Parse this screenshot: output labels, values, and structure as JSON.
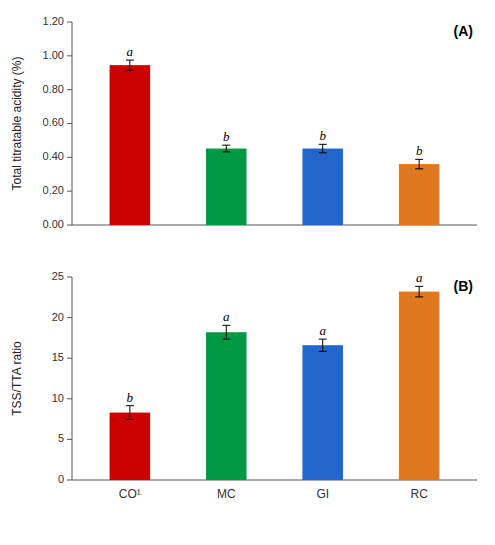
{
  "chart_data": [
    {
      "type": "bar",
      "title": "(A)",
      "categories": [
        null,
        null,
        null,
        null
      ],
      "values": [
        0.945,
        0.452,
        0.452,
        0.36
      ],
      "errors": [
        0.03,
        0.02,
        0.025,
        0.028
      ],
      "annotations": [
        "a",
        "b",
        "b",
        "b"
      ],
      "colors": [
        "#cc0000",
        "#009944",
        "#2266cc",
        "#e07820"
      ],
      "ylabel": "Total titratable acidity (%)",
      "ylim": [
        0.0,
        1.2
      ],
      "yticks": [
        {
          "value": 0.0,
          "label": "0.00"
        },
        {
          "value": 0.2,
          "label": "0.20"
        },
        {
          "value": 0.4,
          "label": "0.40"
        },
        {
          "value": 0.6,
          "label": "0.60"
        },
        {
          "value": 0.8,
          "label": "0.80"
        },
        {
          "value": 1.0,
          "label": "1.00"
        },
        {
          "value": 1.2,
          "label": "1.20"
        }
      ],
      "tick_labels": "y",
      "grid": false
    },
    {
      "type": "bar",
      "title": "(B)",
      "categories": [
        "CO¹",
        "MC",
        "GI",
        "RC"
      ],
      "values": [
        8.3,
        18.2,
        16.6,
        23.2
      ],
      "errors": [
        0.85,
        0.85,
        0.75,
        0.65
      ],
      "annotations": [
        "b",
        "a",
        "a",
        "a"
      ],
      "colors": [
        "#cc0000",
        "#009944",
        "#2266cc",
        "#e07820"
      ],
      "ylabel": "TSS/TTA ratio",
      "ylim": [
        0,
        25
      ],
      "yticks": [
        0,
        5,
        10,
        15,
        20,
        25
      ],
      "grid": false
    }
  ]
}
